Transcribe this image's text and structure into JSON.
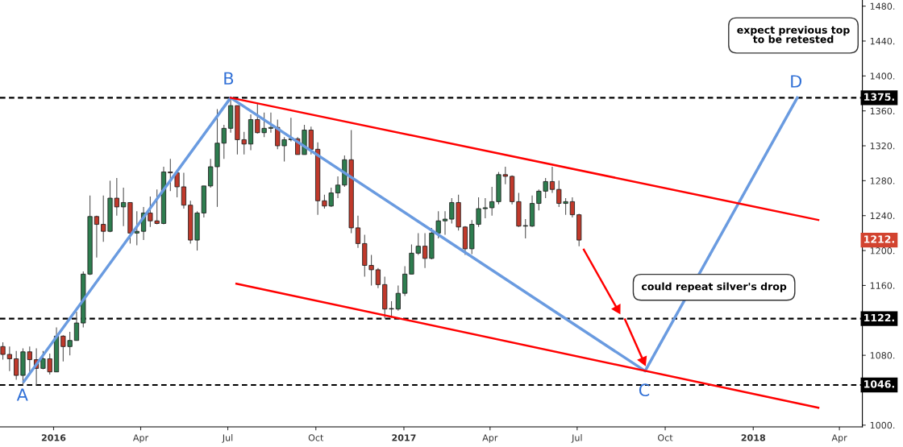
{
  "chart_data": {
    "type": "candlestick",
    "x": [
      "2015-11-09",
      "2015-11-16",
      "2015-11-23",
      "2015-11-30",
      "2015-12-07",
      "2015-12-14",
      "2015-12-21",
      "2015-12-28",
      "2016-01-04",
      "2016-01-11",
      "2016-01-18",
      "2016-01-25",
      "2016-02-01",
      "2016-02-08",
      "2016-02-15",
      "2016-02-22",
      "2016-02-29",
      "2016-03-07",
      "2016-03-14",
      "2016-03-21",
      "2016-03-28",
      "2016-04-04",
      "2016-04-11",
      "2016-04-18",
      "2016-04-25",
      "2016-05-02",
      "2016-05-09",
      "2016-05-16",
      "2016-05-23",
      "2016-05-30",
      "2016-06-06",
      "2016-06-13",
      "2016-06-20",
      "2016-06-27",
      "2016-07-04",
      "2016-07-11",
      "2016-07-18",
      "2016-07-25",
      "2016-08-01",
      "2016-08-08",
      "2016-08-15",
      "2016-08-22",
      "2016-08-29",
      "2016-09-05",
      "2016-09-12",
      "2016-09-19",
      "2016-09-26",
      "2016-10-03",
      "2016-10-10",
      "2016-10-17",
      "2016-10-24",
      "2016-10-31",
      "2016-11-07",
      "2016-11-14",
      "2016-11-21",
      "2016-11-28",
      "2016-12-05",
      "2016-12-12",
      "2016-12-19",
      "2016-12-26",
      "2017-01-02",
      "2017-01-09",
      "2017-01-16",
      "2017-01-23",
      "2017-01-30",
      "2017-02-06",
      "2017-02-13",
      "2017-02-20",
      "2017-02-27",
      "2017-03-06",
      "2017-03-13",
      "2017-03-20",
      "2017-03-27",
      "2017-04-03",
      "2017-04-10",
      "2017-04-17",
      "2017-04-24",
      "2017-05-01",
      "2017-05-08",
      "2017-05-15",
      "2017-05-22",
      "2017-05-29",
      "2017-06-05",
      "2017-06-12",
      "2017-06-19",
      "2017-06-26",
      "2017-07-03"
    ],
    "ohlc": [
      [
        1090,
        1095,
        1075,
        1081
      ],
      [
        1081,
        1090,
        1062,
        1076
      ],
      [
        1076,
        1085,
        1052,
        1057
      ],
      [
        1057,
        1088,
        1046,
        1084
      ],
      [
        1084,
        1090,
        1061,
        1075
      ],
      [
        1075,
        1088,
        1046,
        1065
      ],
      [
        1065,
        1085,
        1064,
        1076
      ],
      [
        1076,
        1082,
        1058,
        1061
      ],
      [
        1061,
        1112,
        1061,
        1102
      ],
      [
        1102,
        1103,
        1073,
        1090
      ],
      [
        1090,
        1107,
        1080,
        1097
      ],
      [
        1097,
        1130,
        1097,
        1117
      ],
      [
        1117,
        1176,
        1112,
        1173
      ],
      [
        1173,
        1263,
        1172,
        1239
      ],
      [
        1239,
        1240,
        1192,
        1230
      ],
      [
        1230,
        1263,
        1210,
        1222
      ],
      [
        1222,
        1280,
        1221,
        1260
      ],
      [
        1260,
        1283,
        1240,
        1250
      ],
      [
        1250,
        1272,
        1228,
        1255
      ],
      [
        1255,
        1255,
        1208,
        1220
      ],
      [
        1220,
        1245,
        1206,
        1222
      ],
      [
        1222,
        1250,
        1212,
        1243
      ],
      [
        1243,
        1262,
        1227,
        1234
      ],
      [
        1234,
        1270,
        1230,
        1231
      ],
      [
        1231,
        1296,
        1230,
        1290
      ],
      [
        1290,
        1305,
        1268,
        1289
      ],
      [
        1289,
        1290,
        1261,
        1273
      ],
      [
        1273,
        1289,
        1248,
        1252
      ],
      [
        1252,
        1257,
        1208,
        1212
      ],
      [
        1212,
        1245,
        1200,
        1243
      ],
      [
        1243,
        1274,
        1238,
        1274
      ],
      [
        1274,
        1305,
        1272,
        1296
      ],
      [
        1296,
        1362,
        1250,
        1323
      ],
      [
        1323,
        1344,
        1305,
        1340
      ],
      [
        1340,
        1375,
        1335,
        1366
      ],
      [
        1366,
        1366,
        1310,
        1327
      ],
      [
        1327,
        1336,
        1310,
        1322
      ],
      [
        1322,
        1356,
        1315,
        1350
      ],
      [
        1350,
        1368,
        1334,
        1335
      ],
      [
        1335,
        1358,
        1330,
        1340
      ],
      [
        1340,
        1358,
        1335,
        1341
      ],
      [
        1341,
        1350,
        1316,
        1320
      ],
      [
        1320,
        1330,
        1302,
        1327
      ],
      [
        1327,
        1352,
        1325,
        1328
      ],
      [
        1328,
        1330,
        1310,
        1310
      ],
      [
        1310,
        1344,
        1310,
        1338
      ],
      [
        1338,
        1342,
        1310,
        1316
      ],
      [
        1316,
        1324,
        1241,
        1257
      ],
      [
        1257,
        1264,
        1248,
        1251
      ],
      [
        1251,
        1272,
        1250,
        1266
      ],
      [
        1266,
        1285,
        1260,
        1275
      ],
      [
        1275,
        1309,
        1273,
        1304
      ],
      [
        1304,
        1338,
        1220,
        1226
      ],
      [
        1226,
        1240,
        1203,
        1208
      ],
      [
        1208,
        1218,
        1170,
        1183
      ],
      [
        1183,
        1195,
        1160,
        1178
      ],
      [
        1178,
        1180,
        1157,
        1161
      ],
      [
        1161,
        1170,
        1122,
        1133
      ],
      [
        1133,
        1142,
        1123,
        1133
      ],
      [
        1133,
        1160,
        1131,
        1151
      ],
      [
        1151,
        1182,
        1148,
        1173
      ],
      [
        1173,
        1207,
        1173,
        1197
      ],
      [
        1197,
        1220,
        1195,
        1205
      ],
      [
        1205,
        1220,
        1180,
        1191
      ],
      [
        1191,
        1226,
        1190,
        1220
      ],
      [
        1220,
        1245,
        1214,
        1234
      ],
      [
        1234,
        1245,
        1218,
        1236
      ],
      [
        1236,
        1260,
        1231,
        1255
      ],
      [
        1255,
        1264,
        1223,
        1227
      ],
      [
        1227,
        1228,
        1195,
        1202
      ],
      [
        1202,
        1235,
        1196,
        1230
      ],
      [
        1230,
        1261,
        1227,
        1248
      ],
      [
        1248,
        1260,
        1237,
        1249
      ],
      [
        1249,
        1273,
        1240,
        1256
      ],
      [
        1256,
        1290,
        1253,
        1287
      ],
      [
        1287,
        1296,
        1276,
        1285
      ],
      [
        1285,
        1286,
        1253,
        1256
      ],
      [
        1256,
        1266,
        1227,
        1228
      ],
      [
        1228,
        1236,
        1214,
        1228
      ],
      [
        1228,
        1263,
        1227,
        1254
      ],
      [
        1254,
        1270,
        1246,
        1268
      ],
      [
        1268,
        1283,
        1260,
        1279
      ],
      [
        1279,
        1296,
        1266,
        1270
      ],
      [
        1270,
        1280,
        1250,
        1254
      ],
      [
        1254,
        1260,
        1241,
        1256
      ],
      [
        1256,
        1261,
        1238,
        1241
      ],
      [
        1241,
        1242,
        1205,
        1212
      ]
    ],
    "colors": [
      "#c0392b",
      "#c0392b",
      "#c0392b",
      "#2e7d4f",
      "#c0392b",
      "#c0392b",
      "#2e7d4f",
      "#c0392b",
      "#2e7d4f",
      "#c0392b",
      "#2e7d4f",
      "#2e7d4f",
      "#2e7d4f",
      "#2e7d4f",
      "#c0392b",
      "#c0392b",
      "#2e7d4f",
      "#c0392b",
      "#2e7d4f",
      "#c0392b",
      "#2e7d4f",
      "#2e7d4f",
      "#c0392b",
      "#c0392b",
      "#2e7d4f",
      "#c0392b",
      "#c0392b",
      "#c0392b",
      "#c0392b",
      "#2e7d4f",
      "#2e7d4f",
      "#2e7d4f",
      "#2e7d4f",
      "#2e7d4f",
      "#2e7d4f",
      "#c0392b",
      "#c0392b",
      "#2e7d4f",
      "#c0392b",
      "#2e7d4f",
      "#2e7d4f",
      "#c0392b",
      "#2e7d4f",
      "#2e7d4f",
      "#c0392b",
      "#2e7d4f",
      "#c0392b",
      "#c0392b",
      "#c0392b",
      "#2e7d4f",
      "#2e7d4f",
      "#2e7d4f",
      "#c0392b",
      "#c0392b",
      "#c0392b",
      "#c0392b",
      "#c0392b",
      "#c0392b",
      "#2e7d4f",
      "#2e7d4f",
      "#2e7d4f",
      "#2e7d4f",
      "#2e7d4f",
      "#c0392b",
      "#2e7d4f",
      "#2e7d4f",
      "#2e7d4f",
      "#2e7d4f",
      "#c0392b",
      "#c0392b",
      "#2e7d4f",
      "#2e7d4f",
      "#2e7d4f",
      "#2e7d4f",
      "#2e7d4f",
      "#c0392b",
      "#c0392b",
      "#c0392b",
      "#2e7d4f",
      "#2e7d4f",
      "#2e7d4f",
      "#2e7d4f",
      "#c0392b",
      "#c0392b",
      "#2e7d4f",
      "#c0392b",
      "#c0392b"
    ],
    "series": [
      {
        "type": "line",
        "color": "#6a9be0",
        "x": [
          "2015-12-01",
          "2016-07-04",
          "2017-09-10",
          "2018-02-16"
        ],
        "values": [
          1050,
          1375,
          1062,
          1375
        ]
      },
      {
        "type": "line",
        "color": "#ff0000",
        "x": [
          "2016-07-04",
          "2018-03-10"
        ],
        "values": [
          1375,
          1235
        ]
      },
      {
        "type": "line",
        "color": "#ff0000",
        "x": [
          "2016-07-10",
          "2018-03-10"
        ],
        "values": [
          1162,
          1020
        ]
      },
      {
        "type": "line",
        "marker": "triangle",
        "color": "#ff0000",
        "x": [
          "2017-07-08",
          "2017-08-12"
        ],
        "values": [
          1201,
          1133
        ]
      },
      {
        "type": "line",
        "marker": "triangle",
        "color": "#ff0000",
        "x": [
          "2017-08-20",
          "2017-09-08"
        ],
        "values": [
          1121,
          1074
        ]
      }
    ],
    "ref_lines": [
      {
        "axis": "y",
        "value": 1375,
        "label": "1375.",
        "color": "#000000",
        "line_style": "dashed"
      },
      {
        "axis": "y",
        "value": 1122,
        "label": "1122.",
        "color": "#000000",
        "line_style": "dashed"
      },
      {
        "axis": "y",
        "value": 1046,
        "label": "1046.",
        "color": "#000000",
        "line_style": "dashed"
      }
    ],
    "annotations": [
      "A",
      "B",
      "C",
      "D",
      "expect previous top\nto be retested",
      "could repeat silver's drop",
      "1212."
    ],
    "xlim": [
      "2015-11-06",
      "2018-04-25"
    ],
    "xticks": [
      {
        "value": "2016-01-01",
        "label": "2016"
      },
      {
        "value": "2016-04-01",
        "label": "Apr"
      },
      {
        "value": "2016-07-01",
        "label": "Jul"
      },
      {
        "value": "2016-10-01",
        "label": "Oct"
      },
      {
        "value": "2017-01-01",
        "label": "2017"
      },
      {
        "value": "2017-04-01",
        "label": "Apr"
      },
      {
        "value": "2017-07-01",
        "label": "Jul"
      },
      {
        "value": "2017-10-01",
        "label": "Oct"
      },
      {
        "value": "2018-01-01",
        "label": "2018"
      },
      {
        "value": "2018-04-01",
        "label": "Apr"
      }
    ],
    "ylim": [
      998,
      1487
    ],
    "yticks": [
      {
        "value": 1000,
        "label": "1000."
      },
      {
        "value": 1080,
        "label": "1080."
      },
      {
        "value": 1160,
        "label": "1160."
      },
      {
        "value": 1200,
        "label": "1200."
      },
      {
        "value": 1240,
        "label": "1240."
      },
      {
        "value": 1280,
        "label": "1280."
      },
      {
        "value": 1320,
        "label": "1320."
      },
      {
        "value": 1360,
        "label": "1360."
      },
      {
        "value": 1400,
        "label": "1400."
      },
      {
        "value": 1440,
        "label": "1440."
      },
      {
        "value": 1480,
        "label": "1480."
      }
    ],
    "grid": false
  }
}
